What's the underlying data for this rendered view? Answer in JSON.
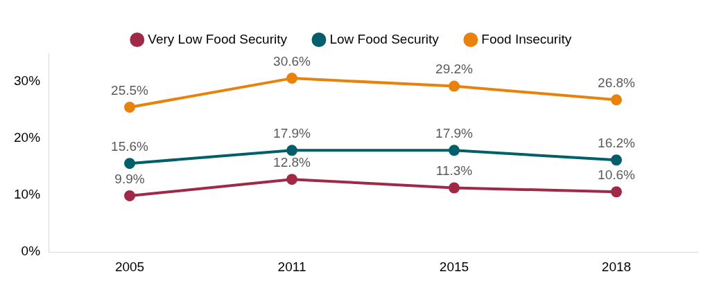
{
  "chart_data": {
    "type": "line",
    "categories": [
      "2005",
      "2011",
      "2015",
      "2018"
    ],
    "series": [
      {
        "name": "Very Low Food Security",
        "color": "#9e2a47",
        "values": [
          9.9,
          12.8,
          11.3,
          10.6
        ],
        "value_labels": [
          "9.9%",
          "12.8%",
          "11.3%",
          "10.6%"
        ]
      },
      {
        "name": "Low Food Security",
        "color": "#005f6b",
        "values": [
          15.6,
          17.9,
          17.9,
          16.2
        ],
        "value_labels": [
          "15.6%",
          "17.9%",
          "17.9%",
          "16.2%"
        ]
      },
      {
        "name": "Food Insecurity",
        "color": "#e8820c",
        "values": [
          25.5,
          30.6,
          29.2,
          26.8
        ],
        "value_labels": [
          "25.5%",
          "30.6%",
          "29.2%",
          "26.8%"
        ]
      }
    ],
    "ylim": [
      0,
      35
    ],
    "yticks": [
      {
        "value": 0,
        "label": "0%"
      },
      {
        "value": 10,
        "label": "10%"
      },
      {
        "value": 20,
        "label": "20%"
      },
      {
        "value": 30,
        "label": "30%"
      }
    ],
    "grid": false,
    "legend": "top",
    "marker": "circle",
    "line_style": "solid"
  }
}
